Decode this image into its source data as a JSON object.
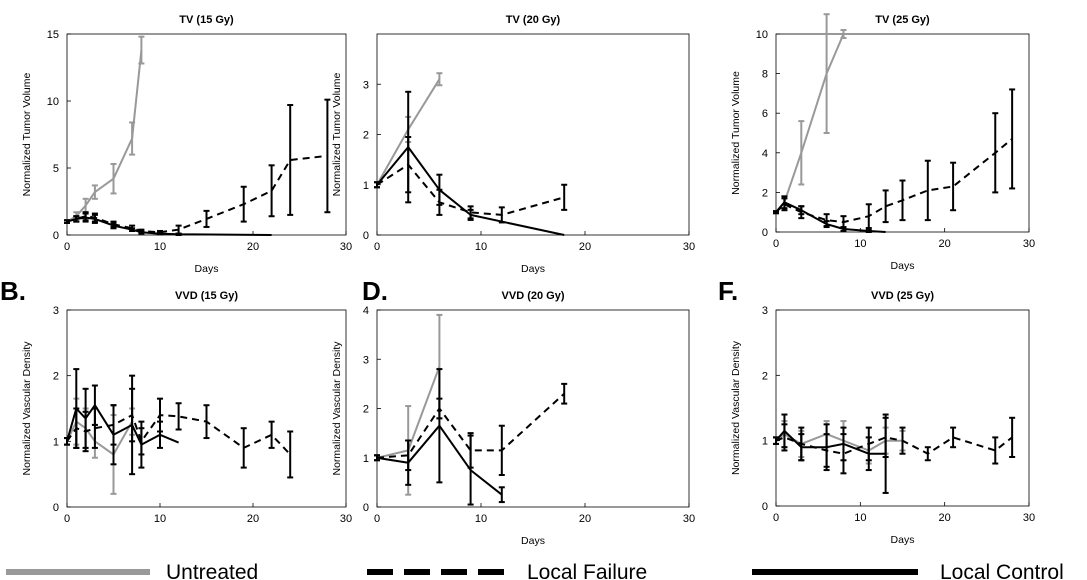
{
  "legend": [
    {
      "label": "Untreated",
      "color": "#999999",
      "dash": "solid"
    },
    {
      "label": "Local Failure",
      "color": "#000000",
      "dash": "dashed"
    },
    {
      "label": "Local Control",
      "color": "#000000",
      "dash": "solid"
    }
  ],
  "panel_letters": [
    "B.",
    "D.",
    "F."
  ],
  "chart_data": [
    {
      "type": "line",
      "title": "TV (15 Gy)",
      "xlabel": "Days",
      "ylabel": "Normalized Tumor Volume",
      "xlim": [
        0,
        30
      ],
      "ylim": [
        0,
        15
      ],
      "xticks": [
        0,
        10,
        20,
        30
      ],
      "yticks": [
        0,
        5,
        10,
        15
      ],
      "series": [
        {
          "name": "Untreated",
          "x": [
            0,
            1,
            2,
            3,
            5,
            7,
            8
          ],
          "y": [
            1,
            1.4,
            2.2,
            3.2,
            4.2,
            7.2,
            13.8
          ],
          "err": [
            0.1,
            0.3,
            0.5,
            0.5,
            1.1,
            1.2,
            1.0
          ]
        },
        {
          "name": "Local Failure",
          "x": [
            0,
            1,
            2,
            3,
            5,
            7,
            8,
            10,
            12,
            15,
            19,
            22,
            24,
            28
          ],
          "y": [
            1,
            1.2,
            1.4,
            1.3,
            0.8,
            0.5,
            0.3,
            0.2,
            0.4,
            1.2,
            2.3,
            3.3,
            5.6,
            5.9
          ],
          "err": [
            0.1,
            0.2,
            0.3,
            0.3,
            0.2,
            0.2,
            0.1,
            0.1,
            0.3,
            0.6,
            1.3,
            1.9,
            4.1,
            4.2
          ]
        },
        {
          "name": "Local Control",
          "x": [
            0,
            1,
            2,
            3,
            5,
            7,
            8,
            10,
            12,
            22
          ],
          "y": [
            1,
            1.2,
            1.3,
            1.2,
            0.7,
            0.4,
            0.2,
            0.1,
            0.05,
            0.0
          ],
          "err": [
            0.1,
            0.2,
            0.3,
            0.3,
            0.2,
            0.1,
            0.1,
            0.05,
            0.05,
            0.0
          ]
        }
      ]
    },
    {
      "type": "line",
      "title": "TV (20 Gy)",
      "xlabel": "Days",
      "ylabel": "Normalized Tumor Volume",
      "xlim": [
        0,
        30
      ],
      "ylim": [
        0,
        4
      ],
      "xticks": [
        0,
        10,
        20,
        30
      ],
      "yticks": [
        0,
        1,
        2,
        3
      ],
      "series": [
        {
          "name": "Untreated",
          "x": [
            0,
            3,
            6
          ],
          "y": [
            1,
            2.1,
            3.1
          ],
          "err": [
            0.05,
            0.25,
            0.12
          ]
        },
        {
          "name": "Local Failure",
          "x": [
            0,
            3,
            6,
            9,
            12,
            18
          ],
          "y": [
            1,
            1.4,
            0.65,
            0.45,
            0.4,
            0.75
          ],
          "err": [
            0.05,
            0.55,
            0.25,
            0.12,
            0.15,
            0.25
          ]
        },
        {
          "name": "Local Control",
          "x": [
            0,
            3,
            6,
            9,
            18
          ],
          "y": [
            1,
            1.75,
            0.9,
            0.4,
            0.0
          ],
          "err": [
            0.05,
            1.1,
            0.3,
            0.1,
            0.0
          ]
        }
      ]
    },
    {
      "type": "line",
      "title": "TV (25 Gy)",
      "xlabel": "Days",
      "ylabel": "Normalized Tumor Volume",
      "xlim": [
        0,
        30
      ],
      "ylim": [
        0,
        10
      ],
      "xticks": [
        0,
        10,
        20,
        30
      ],
      "yticks": [
        0,
        2,
        4,
        6,
        8,
        10
      ],
      "series": [
        {
          "name": "Untreated",
          "x": [
            0,
            1,
            3,
            6,
            8
          ],
          "y": [
            1,
            1.5,
            4.0,
            8.0,
            10.0
          ],
          "err": [
            0.05,
            0.3,
            1.6,
            3.0,
            0.2
          ]
        },
        {
          "name": "Local Failure",
          "x": [
            0,
            1,
            3,
            6,
            8,
            11,
            13,
            15,
            18,
            21,
            26,
            28
          ],
          "y": [
            1,
            1.4,
            1.0,
            0.6,
            0.5,
            0.8,
            1.3,
            1.6,
            2.1,
            2.3,
            4.0,
            4.7
          ],
          "err": [
            0.05,
            0.3,
            0.3,
            0.3,
            0.3,
            0.6,
            0.8,
            1.0,
            1.5,
            1.2,
            2.0,
            2.5
          ]
        },
        {
          "name": "Local Control",
          "x": [
            0,
            1,
            3,
            6,
            8,
            11,
            13
          ],
          "y": [
            1,
            1.5,
            1.1,
            0.4,
            0.15,
            0.05,
            0.0
          ],
          "err": [
            0.05,
            0.3,
            0.2,
            0.15,
            0.1,
            0.05,
            0.0
          ]
        }
      ]
    },
    {
      "type": "line",
      "title": "VVD (15 Gy)",
      "xlabel": "",
      "ylabel": "Normalized Vascular Density",
      "xlim": [
        0,
        30
      ],
      "ylim": [
        0,
        3
      ],
      "xticks": [
        0,
        10,
        20,
        30
      ],
      "yticks": [
        0,
        1,
        2,
        3
      ],
      "series": [
        {
          "name": "Untreated",
          "x": [
            0,
            1,
            2,
            3,
            5,
            7
          ],
          "y": [
            1,
            1.3,
            1.2,
            1.0,
            0.8,
            1.3
          ],
          "err": [
            0.05,
            0.35,
            0.3,
            0.25,
            0.6,
            0.2
          ]
        },
        {
          "name": "Local Failure",
          "x": [
            0,
            1,
            2,
            3,
            5,
            7,
            8,
            10,
            12,
            15,
            19,
            22,
            24
          ],
          "y": [
            1,
            1.2,
            1.15,
            1.2,
            1.25,
            1.4,
            1.0,
            1.4,
            1.38,
            1.3,
            0.9,
            1.1,
            0.8
          ],
          "err": [
            0.05,
            0.3,
            0.3,
            0.3,
            0.3,
            0.4,
            0.2,
            0.25,
            0.2,
            0.25,
            0.3,
            0.2,
            0.35
          ]
        },
        {
          "name": "Local Control",
          "x": [
            0,
            1,
            2,
            3,
            5,
            7,
            8,
            10,
            12
          ],
          "y": [
            1,
            1.5,
            1.35,
            1.55,
            1.1,
            1.25,
            0.95,
            1.1,
            0.98
          ],
          "err": [
            0.05,
            0.6,
            0.45,
            0.3,
            0.45,
            0.75,
            0.35,
            0.2,
            0.0
          ]
        }
      ]
    },
    {
      "type": "line",
      "title": "VVD (20 Gy)",
      "xlabel": "Days",
      "ylabel": "Normalized Vascular Density",
      "xlim": [
        0,
        30
      ],
      "ylim": [
        0,
        4
      ],
      "xticks": [
        0,
        10,
        20,
        30
      ],
      "yticks": [
        0,
        1,
        2,
        3,
        4
      ],
      "series": [
        {
          "name": "Untreated",
          "x": [
            0,
            3,
            6
          ],
          "y": [
            1,
            1.15,
            2.85
          ],
          "err": [
            0.05,
            0.9,
            1.05
          ]
        },
        {
          "name": "Local Failure",
          "x": [
            0,
            3,
            6,
            9,
            12,
            18
          ],
          "y": [
            1,
            1.05,
            2.0,
            1.15,
            1.15,
            2.3
          ],
          "err": [
            0.05,
            0.3,
            0.2,
            0.35,
            0.5,
            0.2
          ]
        },
        {
          "name": "Local Control",
          "x": [
            0,
            3,
            6,
            9,
            12
          ],
          "y": [
            1,
            0.9,
            1.65,
            0.75,
            0.25
          ],
          "err": [
            0.05,
            0.45,
            1.15,
            0.7,
            0.15
          ]
        }
      ]
    },
    {
      "type": "line",
      "title": "VVD (25 Gy)",
      "xlabel": "Days",
      "ylabel": "Normalized Vascular Density",
      "xlim": [
        0,
        30
      ],
      "ylim": [
        0,
        3
      ],
      "xticks": [
        0,
        10,
        20,
        30
      ],
      "yticks": [
        0,
        1,
        2,
        3
      ],
      "series": [
        {
          "name": "Untreated",
          "x": [
            0,
            1,
            3,
            6,
            8,
            11,
            13,
            15
          ],
          "y": [
            1,
            1.1,
            0.95,
            1.1,
            1.0,
            0.85,
            1.0,
            1.0
          ],
          "err": [
            0.05,
            0.2,
            0.2,
            0.2,
            0.3,
            0.2,
            0.2,
            0.15
          ]
        },
        {
          "name": "Local Failure",
          "x": [
            0,
            1,
            3,
            6,
            8,
            11,
            13,
            15,
            18,
            21,
            26,
            28
          ],
          "y": [
            1,
            1.05,
            0.95,
            0.85,
            0.8,
            0.95,
            1.05,
            1.0,
            0.8,
            1.05,
            0.85,
            1.05
          ],
          "err": [
            0.05,
            0.2,
            0.25,
            0.25,
            0.3,
            0.25,
            0.3,
            0.2,
            0.1,
            0.15,
            0.2,
            0.3
          ]
        },
        {
          "name": "Local Control",
          "x": [
            0,
            1,
            3,
            6,
            8,
            11,
            13
          ],
          "y": [
            1,
            1.15,
            0.9,
            0.9,
            0.95,
            0.8,
            0.8
          ],
          "err": [
            0.05,
            0.25,
            0.2,
            0.35,
            0.25,
            0.25,
            0.6
          ]
        }
      ]
    }
  ]
}
